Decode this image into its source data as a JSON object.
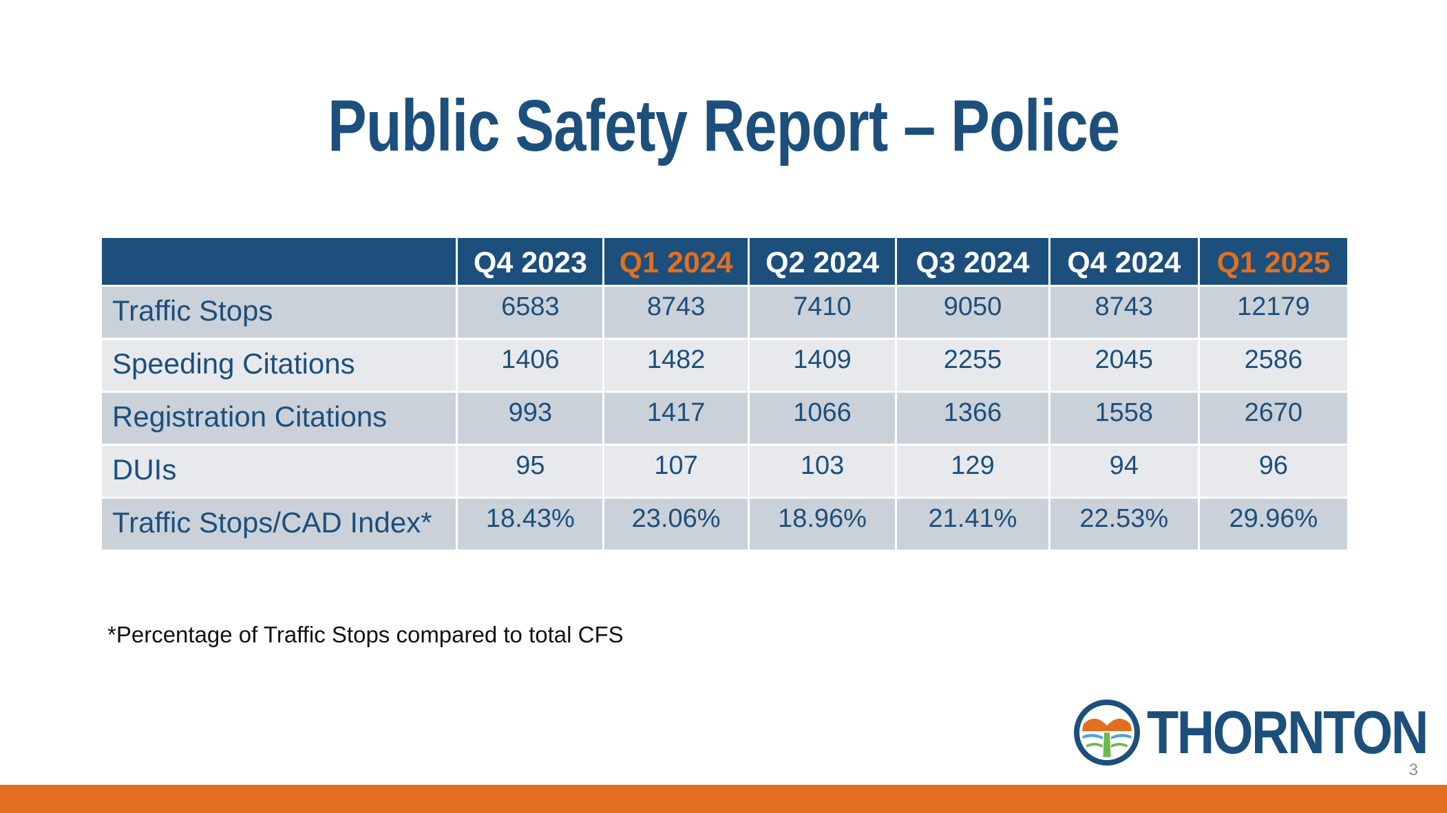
{
  "title": "Public Safety Report – Police",
  "table": {
    "columns": [
      "Q4 2023",
      "Q1 2024",
      "Q2 2024",
      "Q3 2024",
      "Q4 2024",
      "Q1 2025"
    ],
    "highlighted_columns": [
      "Q1 2024",
      "Q1 2025"
    ],
    "rows": [
      {
        "label": "Traffic Stops",
        "values": [
          "6583",
          "8743",
          "7410",
          "9050",
          "8743",
          "12179"
        ]
      },
      {
        "label": "Speeding Citations",
        "values": [
          "1406",
          "1482",
          "1409",
          "2255",
          "2045",
          "2586"
        ]
      },
      {
        "label": "Registration Citations",
        "values": [
          "993",
          "1417",
          "1066",
          "1366",
          "1558",
          "2670"
        ]
      },
      {
        "label": "DUIs",
        "values": [
          "95",
          "107",
          "103",
          "129",
          "94",
          "96"
        ]
      },
      {
        "label": "Traffic Stops/CAD Index*",
        "values": [
          "18.43%",
          "23.06%",
          "18.96%",
          "21.41%",
          "22.53%",
          "29.96%"
        ]
      }
    ]
  },
  "footnote": "*Percentage of Traffic Stops compared to total CFS",
  "logo": {
    "text": "THORNTON",
    "icon": "thornton-emblem-icon"
  },
  "page_number": "3",
  "colors": {
    "primary": "#1c4f7c",
    "accent": "#e36f1e",
    "row_dark": "#cbd1d9",
    "row_light": "#e7e9ed"
  }
}
